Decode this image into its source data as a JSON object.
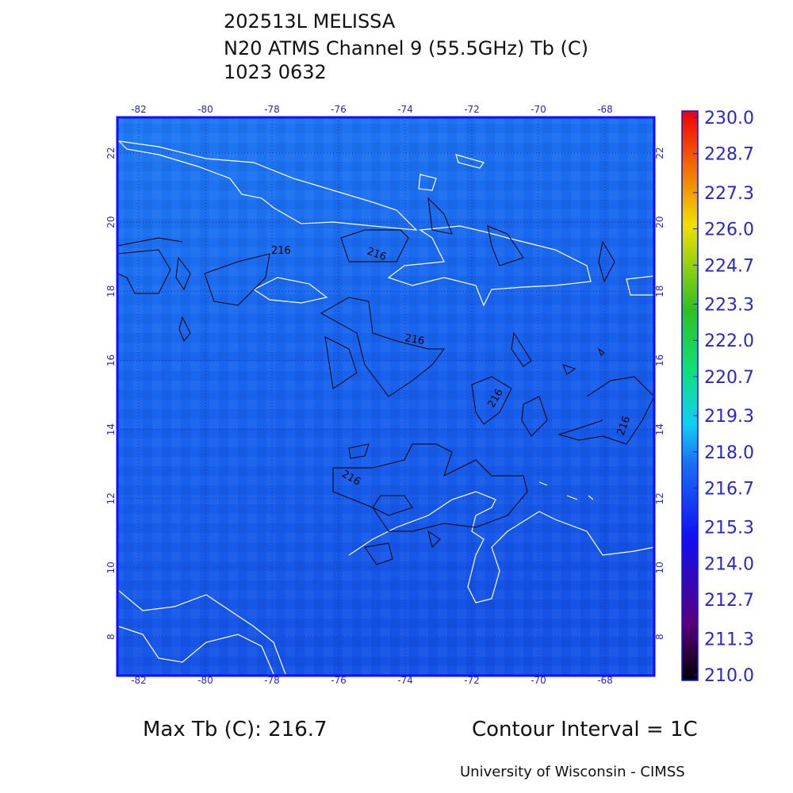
{
  "title": [
    "202513L MELISSA",
    "N20 ATMS Channel 9 (55.5GHz) Tb (C)",
    "1023 0632"
  ],
  "map": {
    "lon_ticks": [
      -82,
      -80,
      -78,
      -76,
      -74,
      -72,
      -70,
      -68
    ],
    "lat_ticks": [
      8,
      10,
      12,
      14,
      16,
      18,
      20,
      22
    ],
    "contour_labels": [
      "216",
      "216",
      "216",
      "216",
      "216",
      "216"
    ]
  },
  "colorbar": {
    "ticks": [
      {
        "value": 230,
        "label": "230.0"
      },
      {
        "value": 228.7,
        "label": "228.7"
      },
      {
        "value": 227.3,
        "label": "227.3"
      },
      {
        "value": 226,
        "label": "226.0"
      },
      {
        "value": 224.7,
        "label": "224.7"
      },
      {
        "value": 223.3,
        "label": "223.3"
      },
      {
        "value": 222,
        "label": "222.0"
      },
      {
        "value": 220.7,
        "label": "220.7"
      },
      {
        "value": 219.3,
        "label": "219.3"
      },
      {
        "value": 218,
        "label": "218.0"
      },
      {
        "value": 216.7,
        "label": "216.7"
      },
      {
        "value": 215.3,
        "label": "215.3"
      },
      {
        "value": 214,
        "label": "214.0"
      },
      {
        "value": 212.7,
        "label": "212.7"
      },
      {
        "value": 211.3,
        "label": "211.3"
      },
      {
        "value": 210,
        "label": "210.0"
      }
    ]
  },
  "footer": {
    "max_tb": "Max Tb (C): 216.7",
    "contour_interval": "Contour Interval = 1C",
    "credit": "University of Wisconsin - CIMSS"
  }
}
